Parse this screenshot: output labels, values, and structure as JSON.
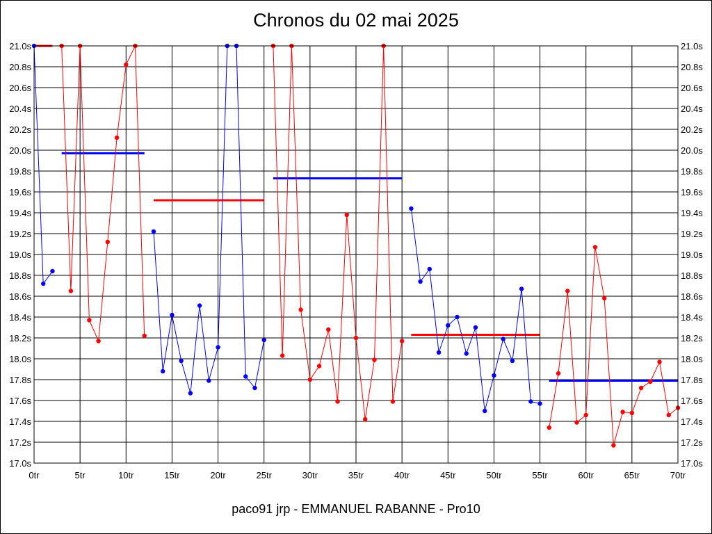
{
  "chart_data": {
    "type": "line",
    "title": "Chronos du 02 mai 2025",
    "footer": "paco91 jrp - EMMANUEL RABANNE - Pro10",
    "xlim": [
      0,
      70
    ],
    "ylim": [
      17.0,
      21.0
    ],
    "x_ticks": [
      0,
      5,
      10,
      15,
      20,
      25,
      30,
      35,
      40,
      45,
      50,
      55,
      60,
      65,
      70
    ],
    "x_tick_labels": [
      "0tr",
      "5tr",
      "10tr",
      "15tr",
      "20tr",
      "25tr",
      "30tr",
      "35tr",
      "40tr",
      "45tr",
      "50tr",
      "55tr",
      "60tr",
      "65tr",
      "70tr"
    ],
    "y_ticks": [
      17.0,
      17.2,
      17.4,
      17.6,
      17.8,
      18.0,
      18.2,
      18.4,
      18.6,
      18.8,
      19.0,
      19.2,
      19.4,
      19.6,
      19.8,
      20.0,
      20.2,
      20.4,
      20.6,
      20.8,
      21.0
    ],
    "y_tick_labels": [
      "17.0s",
      "17.2s",
      "17.4s",
      "17.6s",
      "17.8s",
      "18.0s",
      "18.2s",
      "18.4s",
      "18.6s",
      "18.8s",
      "19.0s",
      "19.2s",
      "19.4s",
      "19.6s",
      "19.8s",
      "20.0s",
      "20.2s",
      "20.4s",
      "20.6s",
      "20.8s",
      "21.0s"
    ],
    "grid": true,
    "series": [
      {
        "color": "#0000ff",
        "points": [
          [
            0,
            21.0
          ],
          [
            1,
            18.72
          ],
          [
            2,
            18.84
          ]
        ]
      },
      {
        "color": "#ff0000",
        "points": [
          [
            3,
            21.0
          ],
          [
            4,
            18.65
          ],
          [
            5,
            21.0
          ],
          [
            6,
            18.37
          ],
          [
            7,
            18.17
          ],
          [
            8,
            19.12
          ],
          [
            9,
            20.12
          ],
          [
            10,
            20.82
          ],
          [
            11,
            21.0
          ],
          [
            12,
            18.22
          ]
        ]
      },
      {
        "color": "#0000ff",
        "points": [
          [
            13,
            19.22
          ],
          [
            14,
            17.88
          ],
          [
            15,
            18.42
          ],
          [
            16,
            17.98
          ],
          [
            17,
            17.67
          ],
          [
            18,
            18.51
          ],
          [
            19,
            17.79
          ],
          [
            20,
            18.11
          ],
          [
            21,
            21.0
          ],
          [
            22,
            21.0
          ],
          [
            23,
            17.83
          ],
          [
            24,
            17.72
          ],
          [
            25,
            18.18
          ]
        ]
      },
      {
        "color": "#ff0000",
        "points": [
          [
            26,
            21.0
          ],
          [
            27,
            18.03
          ],
          [
            28,
            21.0
          ],
          [
            29,
            18.47
          ],
          [
            30,
            17.8
          ],
          [
            31,
            17.93
          ],
          [
            32,
            18.28
          ],
          [
            33,
            17.59
          ],
          [
            34,
            19.38
          ],
          [
            35,
            18.2
          ],
          [
            36,
            17.42
          ],
          [
            37,
            17.99
          ],
          [
            38,
            21.0
          ],
          [
            39,
            17.59
          ],
          [
            40,
            18.17
          ]
        ]
      },
      {
        "color": "#0000ff",
        "points": [
          [
            41,
            19.44
          ],
          [
            42,
            18.74
          ],
          [
            43,
            18.86
          ],
          [
            44,
            18.06
          ],
          [
            45,
            18.32
          ],
          [
            46,
            18.4
          ],
          [
            47,
            18.05
          ],
          [
            48,
            18.3
          ],
          [
            49,
            17.5
          ],
          [
            50,
            17.84
          ],
          [
            51,
            18.19
          ],
          [
            52,
            17.98
          ],
          [
            53,
            18.67
          ],
          [
            54,
            17.59
          ],
          [
            55,
            17.57
          ]
        ]
      },
      {
        "color": "#ff0000",
        "points": [
          [
            56,
            17.34
          ],
          [
            57,
            17.86
          ],
          [
            58,
            18.65
          ],
          [
            59,
            17.39
          ],
          [
            60,
            17.46
          ],
          [
            61,
            19.07
          ],
          [
            62,
            18.58
          ],
          [
            63,
            17.17
          ],
          [
            64,
            17.49
          ],
          [
            65,
            17.48
          ],
          [
            66,
            17.72
          ],
          [
            67,
            17.78
          ],
          [
            68,
            17.97
          ],
          [
            69,
            17.46
          ],
          [
            70,
            17.53
          ]
        ]
      }
    ],
    "averages": [
      {
        "color": "#ff0000",
        "from": 0,
        "to": 2,
        "value": 21.0
      },
      {
        "color": "#0000ff",
        "from": 3,
        "to": 12,
        "value": 19.97
      },
      {
        "color": "#ff0000",
        "from": 13,
        "to": 25,
        "value": 19.52
      },
      {
        "color": "#0000ff",
        "from": 26,
        "to": 40,
        "value": 19.73
      },
      {
        "color": "#ff0000",
        "from": 41,
        "to": 55,
        "value": 18.23
      },
      {
        "color": "#0000ff",
        "from": 56,
        "to": 70,
        "value": 17.79
      }
    ]
  }
}
